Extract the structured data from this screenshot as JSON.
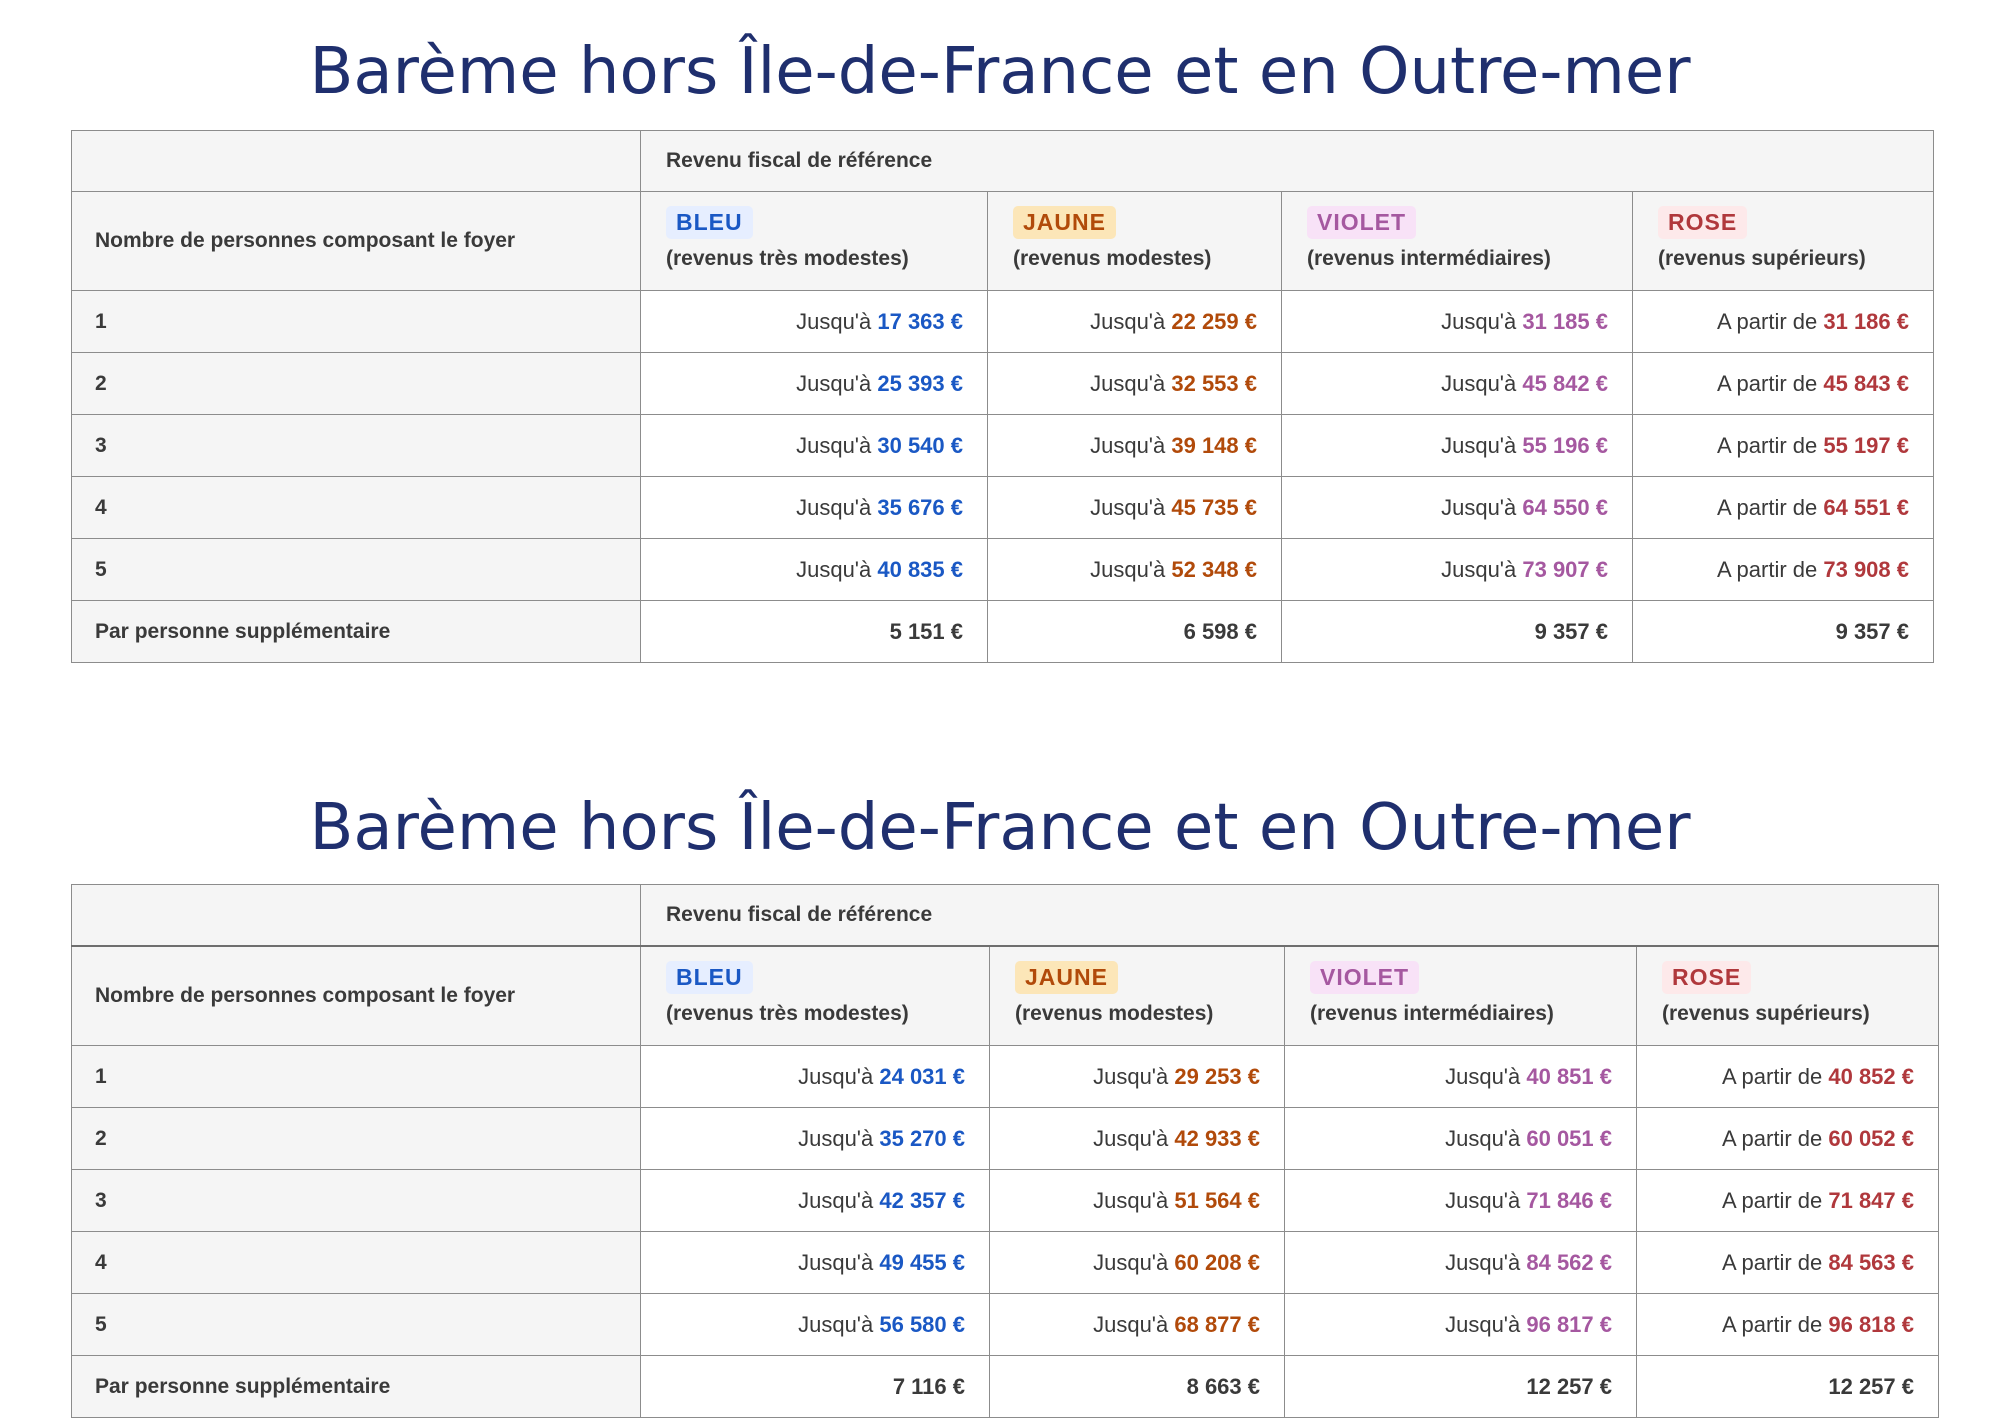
{
  "tables": [
    {
      "title": "Barème hors Île-de-France et en Outre-mer",
      "header_label": "Nombre de personnes composant le foyer",
      "header_group": "Revenu fiscal de référence",
      "categories": [
        {
          "badge": "BLEU",
          "sub": "(revenus très modestes)",
          "color": "#1a58c4"
        },
        {
          "badge": "JAUNE",
          "sub": "(revenus modestes)",
          "color": "#b14a0a"
        },
        {
          "badge": "VIOLET",
          "sub": "(revenus intermédiaires)",
          "color": "#a558a0"
        },
        {
          "badge": "ROSE",
          "sub": "(revenus supérieurs)",
          "color": "#b0383c"
        }
      ],
      "rows": [
        {
          "label": "1",
          "cells": [
            {
              "prefix": "Jusqu'à ",
              "value": "17 363 €"
            },
            {
              "prefix": "Jusqu'à ",
              "value": "22 259 €"
            },
            {
              "prefix": "Jusqu'à ",
              "value": "31 185 €"
            },
            {
              "prefix": "A partir de ",
              "value": "31 186 €"
            }
          ]
        },
        {
          "label": "2",
          "cells": [
            {
              "prefix": "Jusqu'à ",
              "value": "25 393 €"
            },
            {
              "prefix": "Jusqu'à ",
              "value": "32 553 €"
            },
            {
              "prefix": "Jusqu'à ",
              "value": "45 842 €"
            },
            {
              "prefix": "A partir de ",
              "value": "45 843 €"
            }
          ]
        },
        {
          "label": "3",
          "cells": [
            {
              "prefix": "Jusqu'à ",
              "value": "30 540 €"
            },
            {
              "prefix": "Jusqu'à ",
              "value": "39 148 €"
            },
            {
              "prefix": "Jusqu'à ",
              "value": "55 196 €"
            },
            {
              "prefix": "A partir de ",
              "value": "55 197 €"
            }
          ]
        },
        {
          "label": "4",
          "cells": [
            {
              "prefix": "Jusqu'à ",
              "value": "35 676 €"
            },
            {
              "prefix": "Jusqu'à ",
              "value": "45 735 €"
            },
            {
              "prefix": "Jusqu'à ",
              "value": "64 550 €"
            },
            {
              "prefix": "A partir de ",
              "value": "64 551 €"
            }
          ]
        },
        {
          "label": "5",
          "cells": [
            {
              "prefix": "Jusqu'à ",
              "value": "40 835 €"
            },
            {
              "prefix": "Jusqu'à ",
              "value": "52 348 €"
            },
            {
              "prefix": "Jusqu'à ",
              "value": "73 907 €"
            },
            {
              "prefix": "A partir de ",
              "value": "73 908 €"
            }
          ]
        }
      ],
      "extra": {
        "label": "Par personne supplémentaire",
        "values": [
          "5 151 €",
          "6 598 €",
          "9 357 €",
          "9 357 €"
        ]
      }
    },
    {
      "title": "Barème hors Île-de-France et en Outre-mer",
      "header_label": "Nombre de personnes composant le foyer",
      "header_group": "Revenu fiscal de référence",
      "categories": [
        {
          "badge": "BLEU",
          "sub": "(revenus très modestes)",
          "color": "#1a58c4"
        },
        {
          "badge": "JAUNE",
          "sub": "(revenus modestes)",
          "color": "#b14a0a"
        },
        {
          "badge": "VIOLET",
          "sub": "(revenus intermédiaires)",
          "color": "#a558a0"
        },
        {
          "badge": "ROSE",
          "sub": "(revenus supérieurs)",
          "color": "#b0383c"
        }
      ],
      "rows": [
        {
          "label": "1",
          "cells": [
            {
              "prefix": "Jusqu'à ",
              "value": "24 031 €"
            },
            {
              "prefix": "Jusqu'à ",
              "value": "29 253 €"
            },
            {
              "prefix": "Jusqu'à ",
              "value": "40 851 €"
            },
            {
              "prefix": "A partir de ",
              "value": "40 852 €"
            }
          ]
        },
        {
          "label": "2",
          "cells": [
            {
              "prefix": "Jusqu'à ",
              "value": "35 270 €"
            },
            {
              "prefix": "Jusqu'à ",
              "value": "42 933 €"
            },
            {
              "prefix": "Jusqu'à ",
              "value": "60 051 €"
            },
            {
              "prefix": "A partir de ",
              "value": "60 052 €"
            }
          ]
        },
        {
          "label": "3",
          "cells": [
            {
              "prefix": "Jusqu'à ",
              "value": "42 357 €"
            },
            {
              "prefix": "Jusqu'à ",
              "value": "51 564 €"
            },
            {
              "prefix": "Jusqu'à ",
              "value": "71 846 €"
            },
            {
              "prefix": "A partir de ",
              "value": "71 847 €"
            }
          ]
        },
        {
          "label": "4",
          "cells": [
            {
              "prefix": "Jusqu'à ",
              "value": "49 455 €"
            },
            {
              "prefix": "Jusqu'à ",
              "value": "60 208 €"
            },
            {
              "prefix": "Jusqu'à ",
              "value": "84 562 €"
            },
            {
              "prefix": "A partir de ",
              "value": "84 563 €"
            }
          ]
        },
        {
          "label": "5",
          "cells": [
            {
              "prefix": "Jusqu'à ",
              "value": "56 580 €"
            },
            {
              "prefix": "Jusqu'à ",
              "value": "68 877 €"
            },
            {
              "prefix": "Jusqu'à ",
              "value": "96 817 €"
            },
            {
              "prefix": "A partir de ",
              "value": "96 818 €"
            }
          ]
        }
      ],
      "extra": {
        "label": "Par personne supplémentaire",
        "values": [
          "7 116 €",
          "8 663 €",
          "12 257 €",
          "12 257 €"
        ]
      }
    }
  ]
}
